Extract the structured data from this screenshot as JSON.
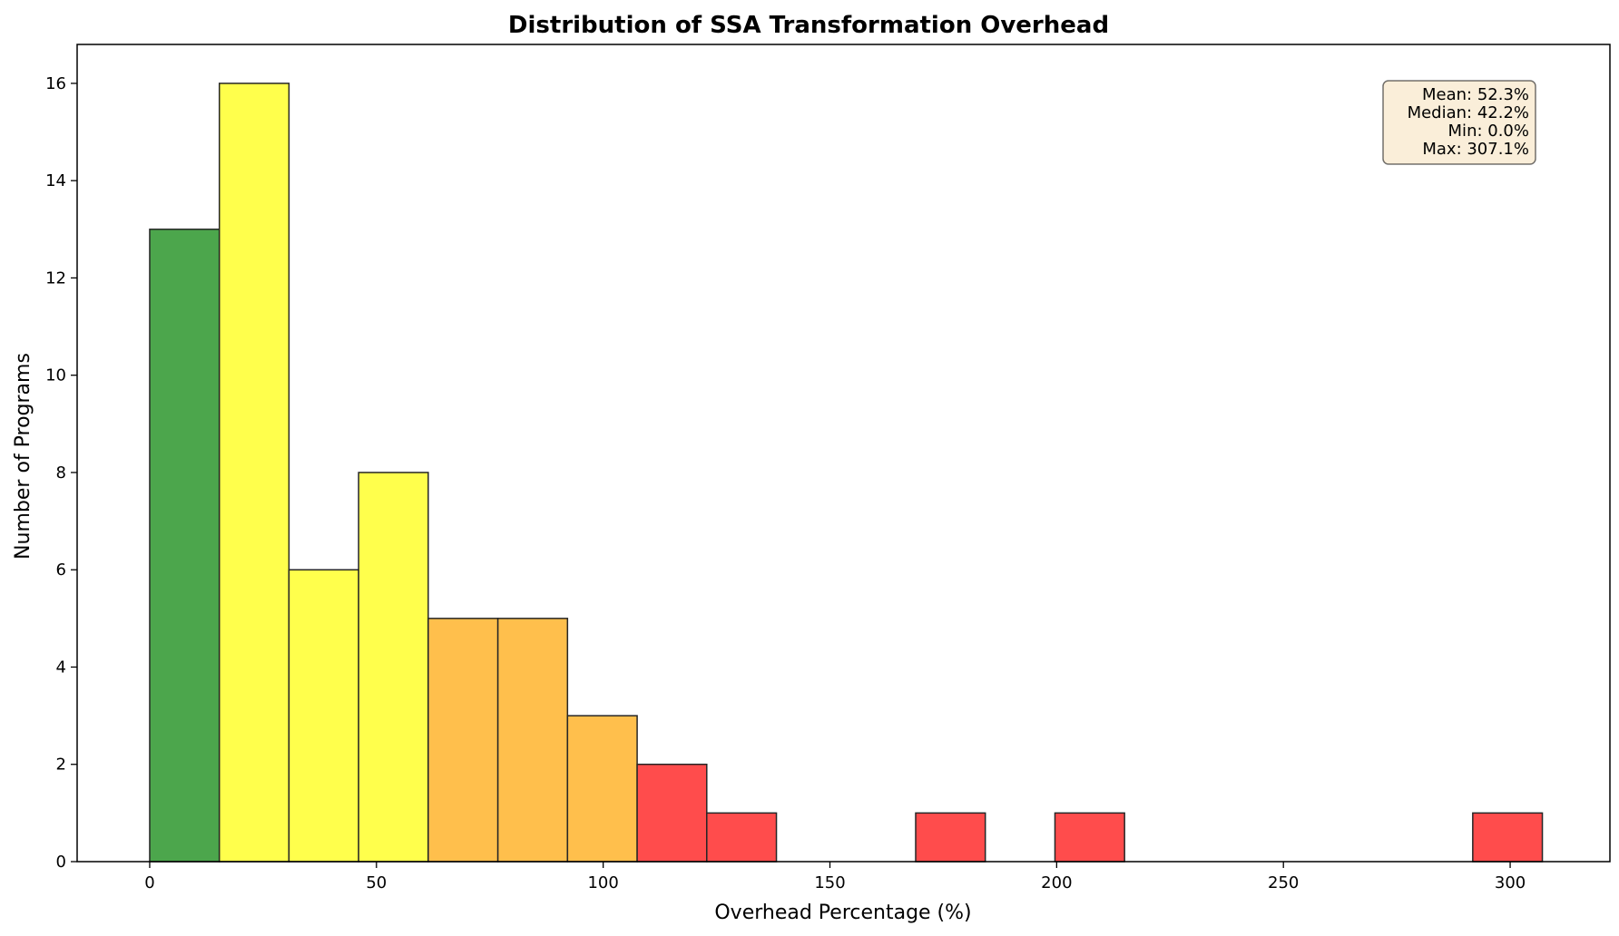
{
  "chart_data": {
    "type": "bar",
    "title": "Distribution of SSA Transformation Overhead",
    "xlabel": "Overhead Percentage (%)",
    "ylabel": "Number of Programs",
    "xlim": [
      -16,
      322
    ],
    "ylim": [
      0,
      16.8
    ],
    "xticks": [
      0,
      50,
      100,
      150,
      200,
      250,
      300
    ],
    "yticks": [
      0,
      2,
      4,
      6,
      8,
      10,
      12,
      14,
      16
    ],
    "grid": false,
    "bins": [
      {
        "x0": 0.0,
        "x1": 15.36,
        "count": 13,
        "color": "#4ca64c"
      },
      {
        "x0": 15.36,
        "x1": 30.71,
        "count": 16,
        "color": "#ffff4c"
      },
      {
        "x0": 30.71,
        "x1": 46.07,
        "count": 6,
        "color": "#ffff4c"
      },
      {
        "x0": 46.07,
        "x1": 61.42,
        "count": 8,
        "color": "#ffff4c"
      },
      {
        "x0": 61.42,
        "x1": 76.78,
        "count": 5,
        "color": "#ffbf4c"
      },
      {
        "x0": 76.78,
        "x1": 92.13,
        "count": 5,
        "color": "#ffbf4c"
      },
      {
        "x0": 92.13,
        "x1": 107.49,
        "count": 3,
        "color": "#ffbf4c"
      },
      {
        "x0": 107.49,
        "x1": 122.84,
        "count": 2,
        "color": "#ff4c4c"
      },
      {
        "x0": 122.84,
        "x1": 138.2,
        "count": 1,
        "color": "#ff4c4c"
      },
      {
        "x0": 168.91,
        "x1": 184.26,
        "count": 1,
        "color": "#ff4c4c"
      },
      {
        "x0": 199.62,
        "x1": 214.97,
        "count": 1,
        "color": "#ff4c4c"
      },
      {
        "x0": 291.75,
        "x1": 307.1,
        "count": 1,
        "color": "#ff4c4c"
      }
    ],
    "stats_box": {
      "placement": "top-right",
      "lines": [
        "Mean: 52.3%",
        "Median: 42.2%",
        "Min: 0.0%",
        "Max: 307.1%"
      ],
      "background": "#f5deb3"
    }
  }
}
